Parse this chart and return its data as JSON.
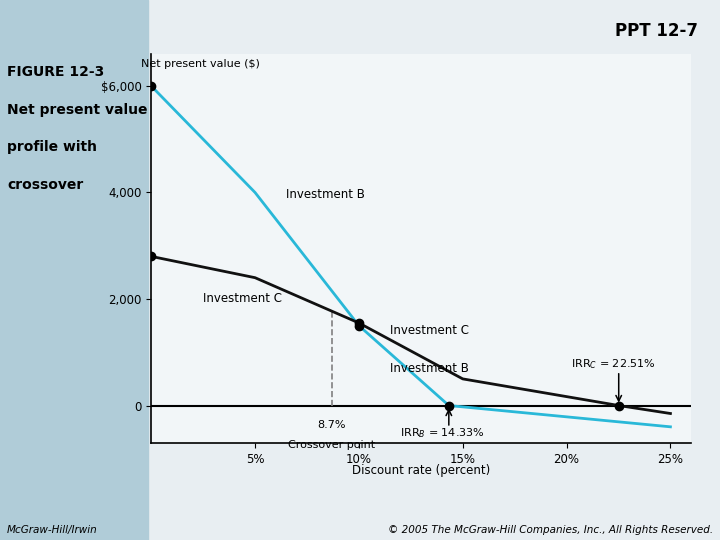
{
  "title": "PPT 12-7",
  "ylabel": "Net present value ($)",
  "xlabel": "Discount rate (percent)",
  "crossover_label": "Crossover point",
  "fig_label_line1": "FIGURE 12-3",
  "fig_label_line2": "Net present value",
  "fig_label_line3": "profile with",
  "fig_label_line4": "crossover",
  "footer_left": "McGraw-Hill/Irwin",
  "footer_right": "© 2005 The McGraw-Hill Companies, Inc., All Rights Reserved.",
  "inv_B_x": [
    0,
    5,
    10,
    14.33,
    25
  ],
  "inv_B_y": [
    6000,
    4000,
    1500,
    0,
    -400
  ],
  "inv_C_x": [
    0,
    5,
    10,
    15,
    22.51,
    25
  ],
  "inv_C_y": [
    2800,
    2400,
    1550,
    500,
    0,
    -150
  ],
  "crossover_x": 8.7,
  "irr_B": 14.33,
  "irr_C": 22.51,
  "xlim": [
    0,
    26
  ],
  "ylim": [
    -700,
    6600
  ],
  "xticks": [
    5,
    10,
    15,
    20,
    25
  ],
  "yticks": [
    0,
    2000,
    4000,
    6000
  ],
  "ytick_labels": [
    "0",
    "2,000",
    "4,000",
    "$6,000"
  ],
  "xtick_labels": [
    "5%",
    "10%",
    "15%",
    "20%",
    "25%"
  ],
  "color_B": "#29b8d8",
  "color_C": "#111111",
  "bg_color_left": "#b0ccd8",
  "bg_color_right": "#e8eef2",
  "plot_bg": "#f2f6f8"
}
